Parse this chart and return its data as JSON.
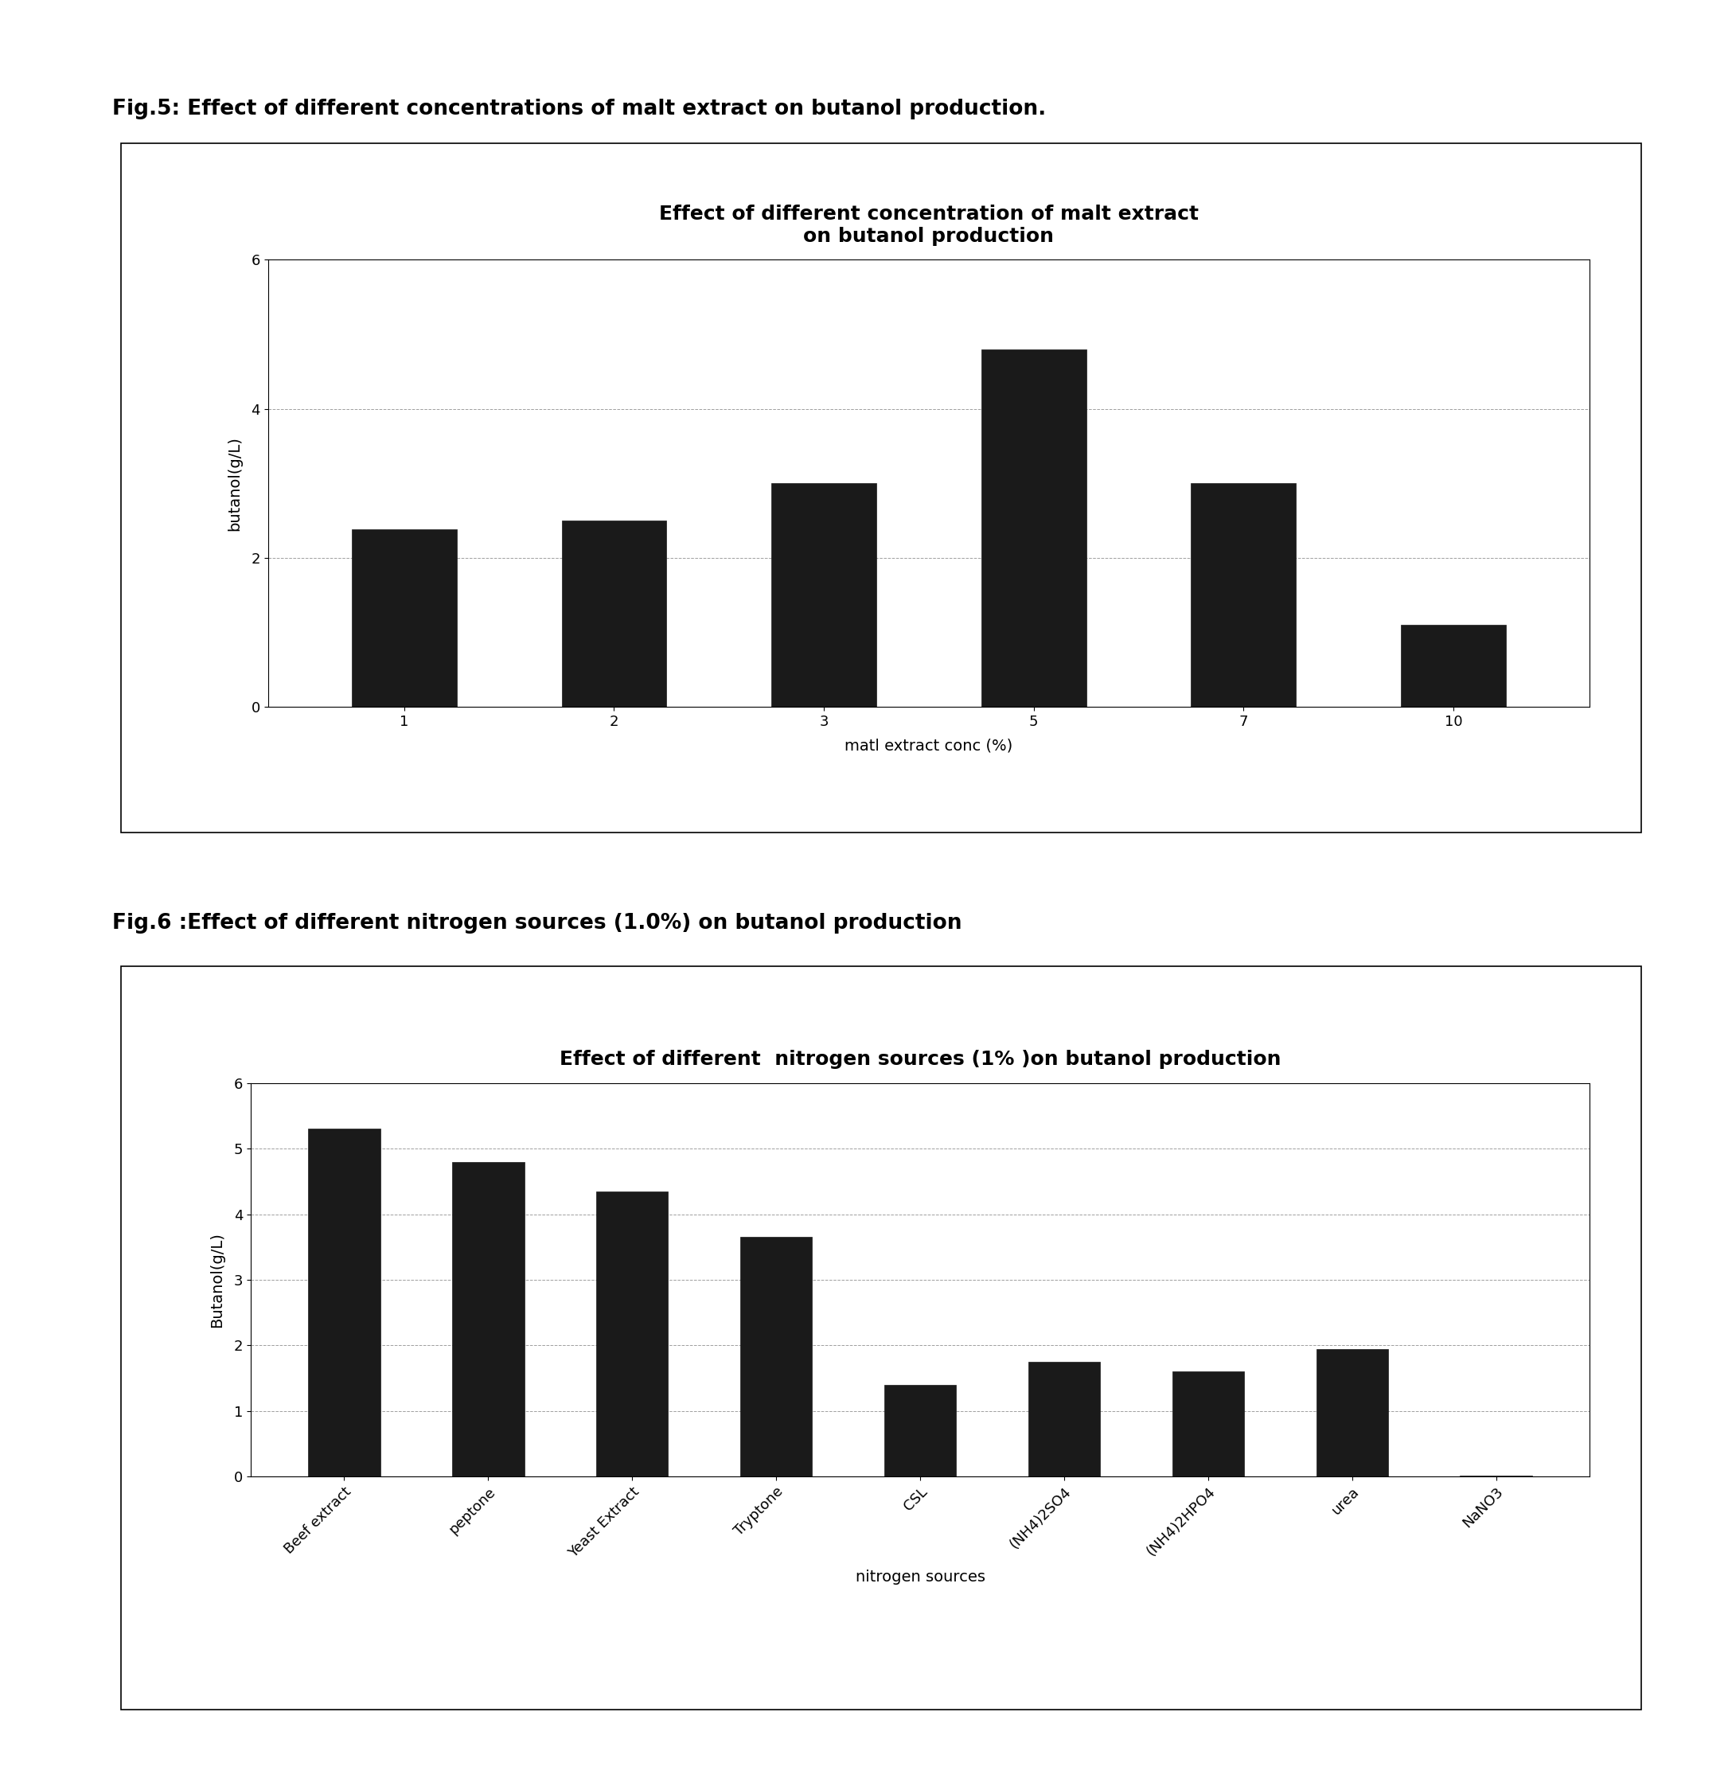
{
  "fig5": {
    "title": "Effect of different concentration of malt extract\non butanol production",
    "xlabel": "matl extract conc (%)",
    "ylabel": "butanol(g/L)",
    "categories": [
      "1",
      "2",
      "3",
      "5",
      "7",
      "10"
    ],
    "values": [
      2.38,
      2.5,
      3.0,
      4.8,
      3.0,
      1.1
    ],
    "ylim": [
      0,
      6
    ],
    "yticks": [
      0,
      2,
      4,
      6
    ],
    "bar_color": "#1a1a1a",
    "fig_caption": "Fig.5: Effect of different concentrations of malt extract on butanol production."
  },
  "fig6": {
    "title": "Effect of different  nitrogen sources (1% )on butanol production",
    "xlabel": "nitrogen sources",
    "ylabel": "Butanol(g/L)",
    "categories": [
      "Beef extract",
      "peptone",
      "Yeast Extract",
      "Tryptone",
      "CSL",
      "(NH4)2SO4",
      "(NH4)2HPO4",
      "urea",
      "NaNO3"
    ],
    "values": [
      5.3,
      4.8,
      4.35,
      3.65,
      1.4,
      1.75,
      1.6,
      1.95,
      0.02
    ],
    "ylim": [
      0,
      6
    ],
    "yticks": [
      0,
      1,
      2,
      3,
      4,
      5,
      6
    ],
    "bar_color": "#1a1a1a",
    "fig_caption": "Fig.6 :Effect of different nitrogen sources (1.0%) on butanol production"
  },
  "background_color": "#ffffff",
  "title_fontsize": 18,
  "axis_label_fontsize": 14,
  "tick_fontsize": 13,
  "caption_fontsize": 19
}
